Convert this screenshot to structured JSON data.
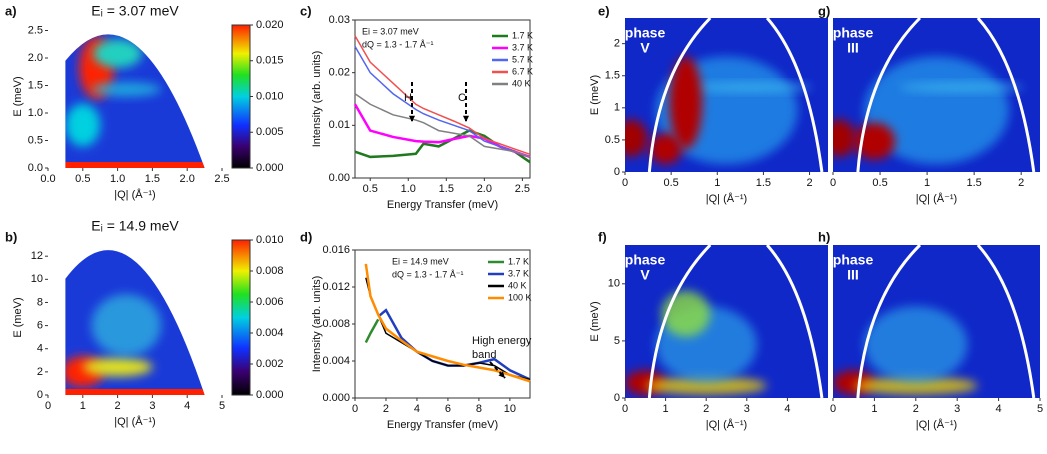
{
  "chart_data": [
    {
      "panel": "a)",
      "type": "heatmap",
      "title": "Eᵢ = 3.07 meV",
      "xlabel": "|Q| (Å⁻¹)",
      "ylabel": "E (meV)",
      "xlim": [
        0,
        2.5
      ],
      "xticks": [
        {
          "value": 0,
          "label": "0.0"
        },
        0.5,
        {
          "value": 1,
          "label": "1.0"
        },
        1.5,
        {
          "value": 2,
          "label": "2.0"
        },
        2.5
      ],
      "ylim": [
        0,
        2.6
      ],
      "yticks": [
        {
          "value": 0,
          "label": "0.0"
        },
        0.5,
        {
          "value": 1,
          "label": "1.0"
        },
        1.5,
        {
          "value": 2,
          "label": "2.0"
        },
        2.5
      ],
      "colorbar": {
        "lim": [
          0,
          0.02
        ],
        "ticks": [
          {
            "value": 0,
            "label": "0.000"
          },
          {
            "value": 0.005,
            "label": "0.005"
          },
          {
            "value": 0.01,
            "label": "0.010"
          },
          {
            "value": 0.015,
            "label": "0.015"
          },
          {
            "value": 0.02,
            "label": "0.020"
          }
        ]
      }
    },
    {
      "panel": "b)",
      "type": "heatmap",
      "title": "Eᵢ = 14.9 meV",
      "xlabel": "|Q| (Å⁻¹)",
      "ylabel": "E (meV)",
      "xlim": [
        0,
        5
      ],
      "xticks": [
        0,
        1,
        2,
        3,
        4,
        5
      ],
      "ylim": [
        0,
        13.4
      ],
      "yticks": [
        0,
        2,
        4,
        6,
        8,
        10,
        12
      ],
      "colorbar": {
        "lim": [
          0,
          0.01
        ],
        "ticks": [
          {
            "value": 0,
            "label": "0.000"
          },
          {
            "value": 0.002,
            "label": "0.002"
          },
          {
            "value": 0.004,
            "label": "0.004"
          },
          {
            "value": 0.006,
            "label": "0.006"
          },
          {
            "value": 0.008,
            "label": "0.008"
          },
          {
            "value": 0.01,
            "label": "0.010"
          }
        ]
      }
    },
    {
      "panel": "c)",
      "type": "line",
      "xlabel": "Energy Transfer (meV)",
      "ylabel": "Intensity (arb. units)",
      "xlim": [
        0.3,
        2.6
      ],
      "xticks": [
        0.5,
        {
          "value": 1,
          "label": "1.0"
        },
        1.5,
        {
          "value": 2,
          "label": "2.0"
        },
        2.5
      ],
      "ylim": [
        0,
        0.03
      ],
      "yticks": [
        {
          "value": 0,
          "label": "0.00"
        },
        0.01,
        0.02,
        0.03
      ],
      "annotations": [
        "Ei = 3.07 meV",
        "dQ = 1.3 - 1.7 Å⁻¹",
        "H",
        "C"
      ],
      "x": [
        0.3,
        0.5,
        0.8,
        1.1,
        1.2,
        1.4,
        1.6,
        1.8,
        2.0,
        2.2,
        2.4,
        2.6
      ],
      "series": [
        {
          "name": "1.7 K",
          "color": "#1f7a1f",
          "values": [
            0.005,
            0.004,
            0.0042,
            0.0046,
            0.0065,
            0.006,
            0.0075,
            0.009,
            0.008,
            0.006,
            0.005,
            0.003
          ]
        },
        {
          "name": "3.7 K",
          "color": "#ff00ff",
          "values": [
            0.014,
            0.009,
            0.0078,
            0.007,
            0.0069,
            0.0068,
            0.0074,
            0.008,
            0.0075,
            0.006,
            0.005,
            0.004
          ]
        },
        {
          "name": "5.7 K",
          "color": "#5566ee",
          "values": [
            0.025,
            0.02,
            0.016,
            0.013,
            0.0122,
            0.011,
            0.01,
            0.009,
            0.007,
            0.006,
            0.005,
            0.004
          ]
        },
        {
          "name": "6.7 K",
          "color": "#f05050",
          "values": [
            0.027,
            0.022,
            0.018,
            0.014,
            0.0132,
            0.012,
            0.0108,
            0.0095,
            0.0075,
            0.0065,
            0.0055,
            0.0045
          ]
        },
        {
          "name": "40 K",
          "color": "#808080",
          "values": [
            0.016,
            0.014,
            0.012,
            0.011,
            0.0105,
            0.009,
            0.0085,
            0.008,
            0.006,
            0.0055,
            0.005,
            0.004
          ]
        }
      ]
    },
    {
      "panel": "d)",
      "type": "line",
      "xlabel": "Energy Transfer (meV)",
      "ylabel": "Intensity (arb. units)",
      "xlim": [
        0,
        11.3
      ],
      "xticks": [
        0,
        2,
        4,
        6,
        8,
        10
      ],
      "ylim": [
        0,
        0.016
      ],
      "yticks": [
        {
          "value": 0,
          "label": "0.000"
        },
        0.004,
        0.008,
        0.012,
        0.016
      ],
      "annotations": [
        "Ei = 14.9 meV",
        "dQ = 1.3 - 1.7 Å⁻¹",
        "High energy",
        "band"
      ],
      "x": [
        0.7,
        1,
        1.5,
        2,
        3,
        4,
        5,
        6,
        7,
        8,
        9,
        10,
        11.3
      ],
      "series": [
        {
          "name": "1.7 K",
          "color": "#2e8b2e",
          "values": [
            0.006,
            0.007,
            0.0085,
            null,
            null,
            null,
            null,
            null,
            null,
            null,
            null,
            null,
            null
          ]
        },
        {
          "name": "3.7 K",
          "color": "#1f3fbf",
          "values": [
            null,
            null,
            0.0088,
            0.0095,
            0.0065,
            0.005,
            0.004,
            0.0035,
            0.0035,
            0.0038,
            0.0042,
            0.003,
            0.002
          ]
        },
        {
          "name": "40 K",
          "color": "#000000",
          "values": [
            0.013,
            0.011,
            0.009,
            0.007,
            0.006,
            0.005,
            0.004,
            0.0035,
            0.0035,
            0.0038,
            0.0035,
            0.0025,
            0.002
          ]
        },
        {
          "name": "100 K",
          "color": "#ff8c00",
          "values": [
            0.0145,
            0.011,
            0.009,
            0.0075,
            0.0062,
            0.005,
            0.0045,
            0.004,
            0.0036,
            0.0033,
            0.003,
            0.0025,
            0.0018
          ]
        }
      ]
    },
    {
      "panel": "e)",
      "type": "heatmap",
      "label": [
        "phase",
        "V"
      ],
      "xlabel": "|Q| (Å⁻¹)",
      "ylabel": "E (meV)",
      "xlim": [
        0,
        2.2
      ],
      "xticks": [
        0,
        0.5,
        1,
        1.5,
        2
      ],
      "ylim": [
        0,
        2.4
      ],
      "yticks": [
        0,
        0.5,
        1,
        1.5,
        2
      ]
    },
    {
      "panel": "f)",
      "type": "heatmap",
      "label": [
        "phase",
        "V"
      ],
      "xlabel": "|Q| (Å⁻¹)",
      "ylabel": "E (meV)",
      "xlim": [
        0,
        5
      ],
      "xticks": [
        0,
        1,
        2,
        3,
        4
      ],
      "ylim": [
        0,
        13.4
      ],
      "yticks": [
        0,
        5,
        10
      ]
    },
    {
      "panel": "g)",
      "type": "heatmap",
      "label": [
        "phase",
        "III"
      ],
      "xlabel": "|Q| (Å⁻¹)",
      "xlim": [
        0,
        2.2
      ],
      "xticks": [
        0,
        0.5,
        1,
        1.5,
        2
      ]
    },
    {
      "panel": "h)",
      "type": "heatmap",
      "label": [
        "phase",
        "III"
      ],
      "xlabel": "|Q| (Å⁻¹)",
      "xlim": [
        0,
        5
      ],
      "xticks": [
        0,
        1,
        2,
        3,
        4,
        5
      ]
    }
  ]
}
